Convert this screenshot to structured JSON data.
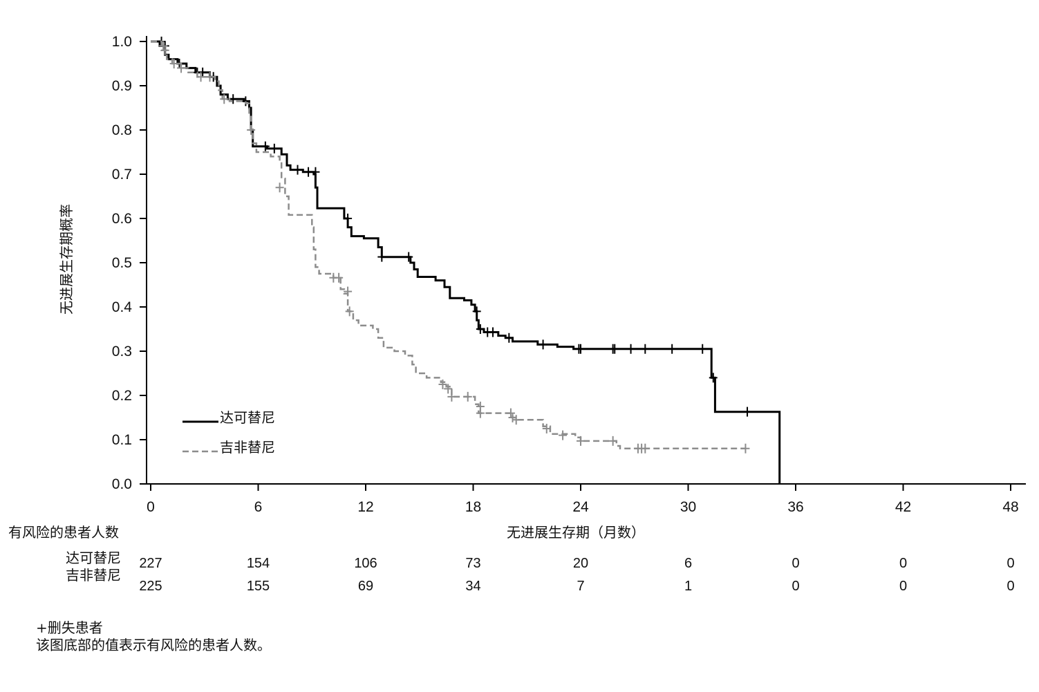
{
  "chart_data": {
    "type": "line",
    "xlabel": "无进展生存期（月数）",
    "ylabel": "无进展生存期概率",
    "xlim": [
      0,
      48
    ],
    "ylim": [
      0,
      1.0
    ],
    "x_ticks": [
      "0",
      "6",
      "12",
      "18",
      "24",
      "30",
      "36",
      "42",
      "48"
    ],
    "y_ticks": [
      "0.0",
      "0.1",
      "0.2",
      "0.3",
      "0.4",
      "0.5",
      "0.6",
      "0.7",
      "0.8",
      "0.9",
      "1.0"
    ],
    "legend_position": "bottom-left",
    "series": [
      {
        "name": "达可替尼",
        "color": "#000000",
        "style": "solid",
        "step": [
          [
            0,
            1.0
          ],
          [
            0.5,
            0.99
          ],
          [
            0.8,
            0.97
          ],
          [
            1.0,
            0.96
          ],
          [
            1.5,
            0.95
          ],
          [
            2.0,
            0.94
          ],
          [
            2.5,
            0.93
          ],
          [
            3.3,
            0.92
          ],
          [
            3.7,
            0.9
          ],
          [
            3.9,
            0.88
          ],
          [
            4.3,
            0.87
          ],
          [
            5.2,
            0.865
          ],
          [
            5.5,
            0.85
          ],
          [
            5.6,
            0.8
          ],
          [
            5.7,
            0.763
          ],
          [
            6.5,
            0.758
          ],
          [
            7.3,
            0.745
          ],
          [
            7.6,
            0.72
          ],
          [
            7.8,
            0.71
          ],
          [
            8.5,
            0.705
          ],
          [
            9.1,
            0.7
          ],
          [
            9.2,
            0.67
          ],
          [
            9.3,
            0.623
          ],
          [
            10.8,
            0.6
          ],
          [
            11.0,
            0.58
          ],
          [
            11.2,
            0.56
          ],
          [
            11.9,
            0.555
          ],
          [
            12.7,
            0.535
          ],
          [
            12.9,
            0.513
          ],
          [
            14.5,
            0.5
          ],
          [
            14.7,
            0.485
          ],
          [
            14.9,
            0.468
          ],
          [
            15.9,
            0.46
          ],
          [
            16.4,
            0.445
          ],
          [
            16.7,
            0.42
          ],
          [
            17.5,
            0.415
          ],
          [
            17.9,
            0.405
          ],
          [
            18.1,
            0.39
          ],
          [
            18.2,
            0.37
          ],
          [
            18.3,
            0.35
          ],
          [
            18.6,
            0.343
          ],
          [
            19.4,
            0.335
          ],
          [
            19.8,
            0.33
          ],
          [
            20.2,
            0.322
          ],
          [
            21.6,
            0.315
          ],
          [
            22.7,
            0.31
          ],
          [
            23.6,
            0.305
          ],
          [
            31.3,
            0.24
          ],
          [
            31.5,
            0.163
          ],
          [
            35.1,
            0.0
          ]
        ],
        "end_x": 35.1,
        "censored": [
          [
            0.6,
            1.0
          ],
          [
            0.8,
            0.99
          ],
          [
            1.6,
            0.95
          ],
          [
            2.6,
            0.93
          ],
          [
            2.9,
            0.93
          ],
          [
            3.5,
            0.92
          ],
          [
            4.6,
            0.87
          ],
          [
            5.3,
            0.865
          ],
          [
            6.4,
            0.763
          ],
          [
            6.9,
            0.758
          ],
          [
            8.2,
            0.71
          ],
          [
            8.8,
            0.705
          ],
          [
            9.2,
            0.705
          ],
          [
            11.0,
            0.6
          ],
          [
            12.9,
            0.513
          ],
          [
            14.4,
            0.513
          ],
          [
            18.2,
            0.39
          ],
          [
            18.4,
            0.35
          ],
          [
            18.8,
            0.343
          ],
          [
            19.1,
            0.343
          ],
          [
            20.0,
            0.33
          ],
          [
            21.9,
            0.315
          ],
          [
            23.9,
            0.305
          ],
          [
            24.0,
            0.305
          ],
          [
            25.8,
            0.305
          ],
          [
            25.9,
            0.305
          ],
          [
            26.8,
            0.305
          ],
          [
            27.6,
            0.305
          ],
          [
            29.1,
            0.305
          ],
          [
            30.8,
            0.305
          ],
          [
            31.4,
            0.24
          ],
          [
            33.3,
            0.163
          ]
        ]
      },
      {
        "name": "吉非替尼",
        "color": "#8c8c8c",
        "style": "dashed",
        "step": [
          [
            0,
            1.0
          ],
          [
            0.6,
            0.98
          ],
          [
            0.9,
            0.96
          ],
          [
            1.2,
            0.95
          ],
          [
            1.7,
            0.94
          ],
          [
            2.1,
            0.93
          ],
          [
            2.6,
            0.92
          ],
          [
            3.6,
            0.91
          ],
          [
            3.8,
            0.89
          ],
          [
            4.0,
            0.87
          ],
          [
            4.4,
            0.865
          ],
          [
            5.3,
            0.86
          ],
          [
            5.5,
            0.83
          ],
          [
            5.6,
            0.8
          ],
          [
            5.7,
            0.77
          ],
          [
            5.9,
            0.75
          ],
          [
            6.7,
            0.74
          ],
          [
            7.2,
            0.73
          ],
          [
            7.3,
            0.69
          ],
          [
            7.5,
            0.65
          ],
          [
            7.7,
            0.608
          ],
          [
            9.0,
            0.58
          ],
          [
            9.1,
            0.53
          ],
          [
            9.2,
            0.49
          ],
          [
            9.4,
            0.475
          ],
          [
            10.2,
            0.466
          ],
          [
            10.6,
            0.44
          ],
          [
            10.8,
            0.43
          ],
          [
            11.0,
            0.39
          ],
          [
            11.3,
            0.37
          ],
          [
            11.6,
            0.358
          ],
          [
            12.4,
            0.35
          ],
          [
            12.7,
            0.33
          ],
          [
            13.0,
            0.308
          ],
          [
            13.6,
            0.3
          ],
          [
            14.2,
            0.29
          ],
          [
            14.6,
            0.27
          ],
          [
            14.8,
            0.25
          ],
          [
            15.4,
            0.24
          ],
          [
            16.2,
            0.23
          ],
          [
            16.5,
            0.22
          ],
          [
            16.8,
            0.197
          ],
          [
            18.1,
            0.18
          ],
          [
            18.3,
            0.16
          ],
          [
            20.2,
            0.15
          ],
          [
            20.5,
            0.145
          ],
          [
            21.9,
            0.13
          ],
          [
            22.3,
            0.113
          ],
          [
            23.7,
            0.105
          ],
          [
            24.0,
            0.097
          ],
          [
            26.0,
            0.086
          ],
          [
            26.2,
            0.08
          ]
        ],
        "end_x": 33.2,
        "censored": [
          [
            0.7,
            0.99
          ],
          [
            0.8,
            0.98
          ],
          [
            1.3,
            0.95
          ],
          [
            1.7,
            0.94
          ],
          [
            2.8,
            0.92
          ],
          [
            3.3,
            0.92
          ],
          [
            4.1,
            0.87
          ],
          [
            5.6,
            0.8
          ],
          [
            7.2,
            0.67
          ],
          [
            10.2,
            0.466
          ],
          [
            10.5,
            0.466
          ],
          [
            11.0,
            0.435
          ],
          [
            11.1,
            0.39
          ],
          [
            16.3,
            0.225
          ],
          [
            16.6,
            0.215
          ],
          [
            16.8,
            0.197
          ],
          [
            17.7,
            0.197
          ],
          [
            18.4,
            0.175
          ],
          [
            18.4,
            0.16
          ],
          [
            20.1,
            0.16
          ],
          [
            20.2,
            0.15
          ],
          [
            20.4,
            0.145
          ],
          [
            22.1,
            0.125
          ],
          [
            23.0,
            0.11
          ],
          [
            24.0,
            0.097
          ],
          [
            25.8,
            0.097
          ],
          [
            27.2,
            0.08
          ],
          [
            27.4,
            0.08
          ],
          [
            27.6,
            0.08
          ],
          [
            33.2,
            0.08
          ]
        ]
      }
    ]
  },
  "risk_table": {
    "title": "有风险的患者人数",
    "rows": [
      {
        "label": "达可替尼",
        "values": [
          "227",
          "154",
          "106",
          "73",
          "20",
          "6",
          "0",
          "0",
          "0"
        ]
      },
      {
        "label": "吉非替尼",
        "values": [
          "225",
          "155",
          "69",
          "34",
          "7",
          "1",
          "0",
          "0",
          "0"
        ]
      }
    ]
  },
  "footnotes": {
    "censor_note": "+删失患者",
    "bottom_note": "该图底部的值表示有风险的患者人数。"
  }
}
